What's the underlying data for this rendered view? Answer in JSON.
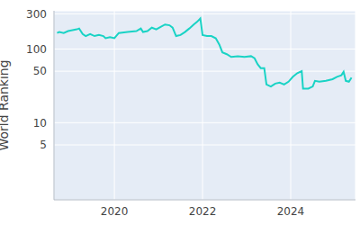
{
  "chart_data": {
    "type": "line",
    "y_label": "World Ranking",
    "log": "y",
    "grid": true,
    "color": "#19d3c5",
    "x": [
      2018.7,
      2018.75,
      2018.85,
      2018.95,
      2019.05,
      2019.15,
      2019.2,
      2019.28,
      2019.35,
      2019.45,
      2019.55,
      2019.65,
      2019.75,
      2019.8,
      2019.9,
      2020.0,
      2020.1,
      2020.3,
      2020.5,
      2020.6,
      2020.65,
      2020.75,
      2020.85,
      2020.95,
      2021.05,
      2021.15,
      2021.25,
      2021.32,
      2021.4,
      2021.5,
      2021.6,
      2021.7,
      2021.8,
      2021.88,
      2021.95,
      2022.0,
      2022.1,
      2022.2,
      2022.3,
      2022.38,
      2022.45,
      2022.55,
      2022.65,
      2022.8,
      2022.95,
      2023.1,
      2023.18,
      2023.25,
      2023.32,
      2023.4,
      2023.45,
      2023.55,
      2023.65,
      2023.75,
      2023.85,
      2023.95,
      2024.05,
      2024.15,
      2024.25,
      2024.28,
      2024.4,
      2024.5,
      2024.55,
      2024.65,
      2024.8,
      2024.95,
      2025.05,
      2025.15,
      2025.2,
      2025.25,
      2025.32,
      2025.38
    ],
    "values": [
      165,
      170,
      165,
      175,
      180,
      185,
      190,
      160,
      150,
      160,
      150,
      155,
      150,
      140,
      145,
      140,
      165,
      170,
      175,
      190,
      170,
      175,
      195,
      185,
      200,
      215,
      210,
      195,
      150,
      155,
      170,
      190,
      215,
      235,
      260,
      155,
      150,
      150,
      140,
      115,
      90,
      85,
      78,
      80,
      78,
      80,
      75,
      62,
      55,
      55,
      33,
      31,
      34,
      35,
      33,
      36,
      42,
      47,
      50,
      29,
      29,
      31,
      37,
      36,
      37,
      39,
      42,
      44,
      49,
      37,
      36,
      41
    ],
    "xlim": [
      2018.63,
      2025.47
    ],
    "xticks": [
      2020,
      2022,
      2024
    ],
    "ylim": [
      0.9,
      330
    ],
    "yticks": [
      5,
      10,
      50,
      100,
      300
    ]
  }
}
